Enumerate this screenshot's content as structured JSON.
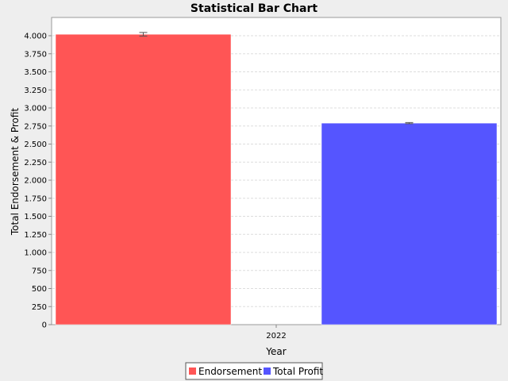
{
  "chart_data": {
    "type": "bar",
    "title": "Statistical Bar Chart",
    "xlabel": "Year",
    "ylabel": "Total Endorsement & Profit",
    "categories": [
      "2022"
    ],
    "ylim": [
      0,
      4000
    ],
    "yticks": [
      0,
      250,
      500,
      750,
      1000,
      1250,
      1500,
      1750,
      2000,
      2250,
      2500,
      2750,
      3000,
      3250,
      3500,
      3750,
      4000
    ],
    "yticklabels": [
      "0",
      "250",
      "500",
      "750",
      "1.000",
      "1.250",
      "1.500",
      "1.750",
      "2.000",
      "2.250",
      "2.500",
      "2.750",
      "3.000",
      "3.250",
      "3.500",
      "3.750",
      "4.000"
    ],
    "series": [
      {
        "name": "Endorsement",
        "values": [
          4020
        ],
        "error": [
          25
        ],
        "color": "#ff5555"
      },
      {
        "name": "Total Profit",
        "values": [
          2790
        ],
        "error": [
          8
        ],
        "color": "#5555ff"
      }
    ],
    "grid": true,
    "legend": "bottom"
  }
}
